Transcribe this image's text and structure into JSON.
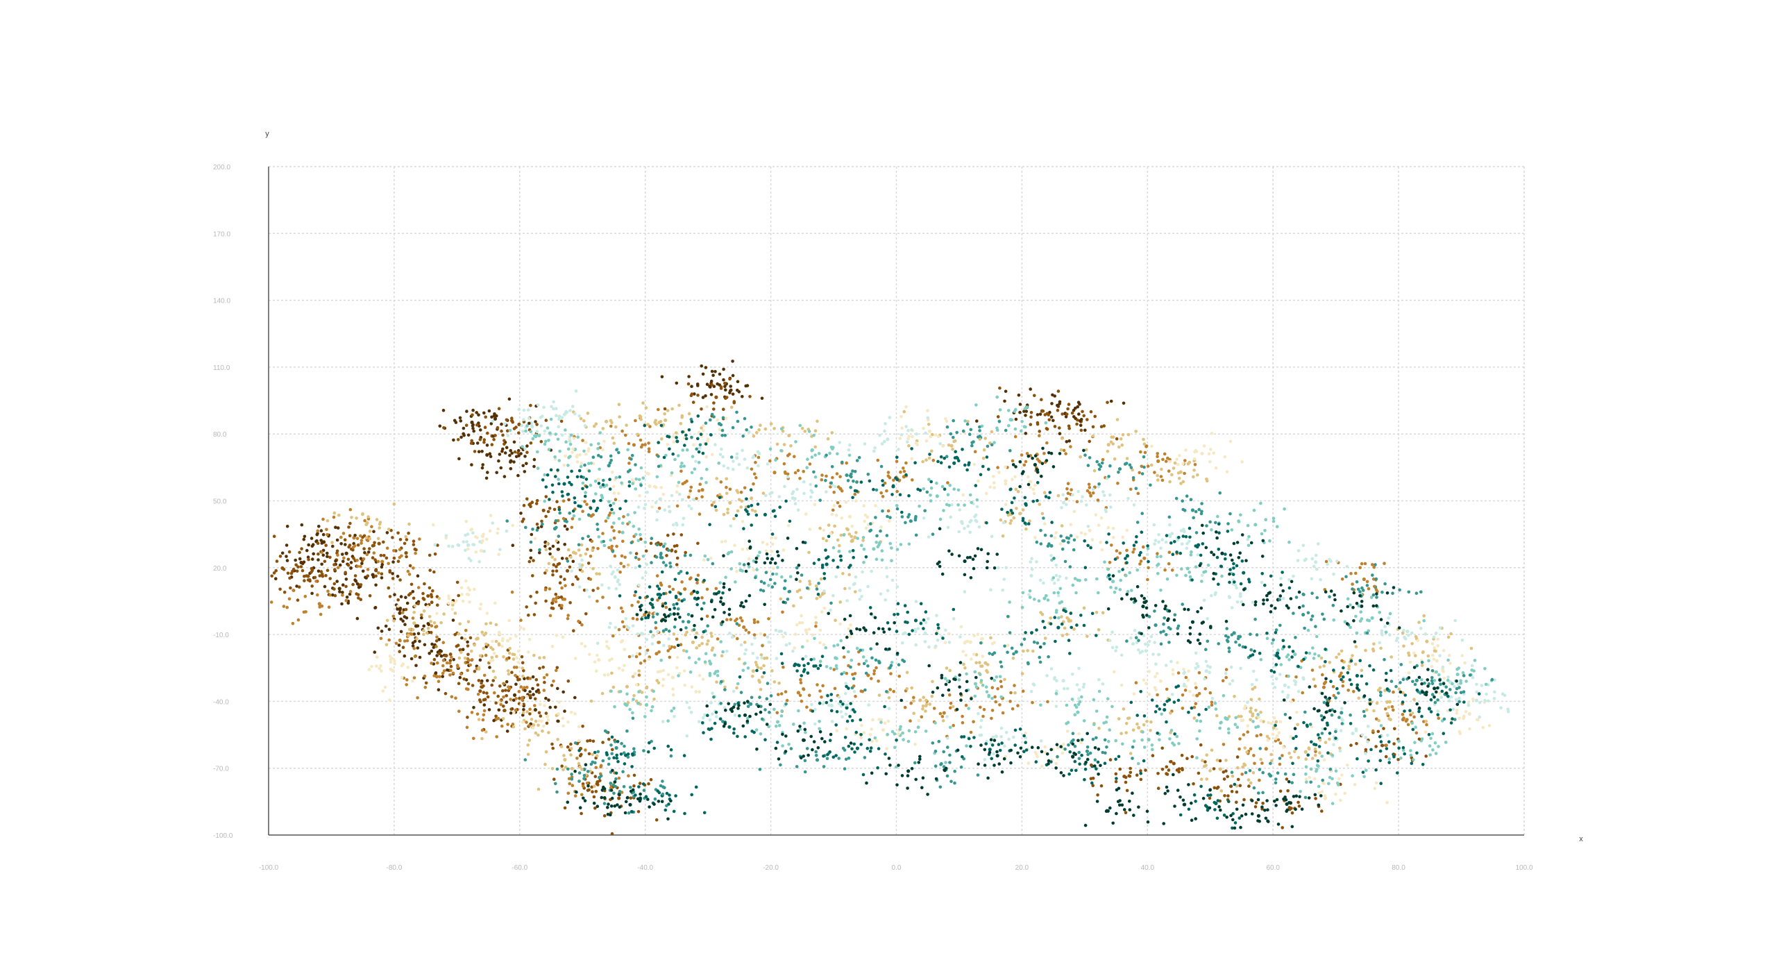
{
  "chart_data": {
    "type": "scatter",
    "title": "",
    "xlabel": "x",
    "ylabel": "y",
    "xlim": [
      -100.0,
      100.0
    ],
    "ylim": [
      -100.0,
      200.0
    ],
    "x_ticks": [
      -100.0,
      -80.0,
      -60.0,
      -40.0,
      -20.0,
      0.0,
      20.0,
      40.0,
      60.0,
      80.0,
      100.0
    ],
    "y_ticks": [
      -100.0,
      -70.0,
      -40.0,
      -10.0,
      20.0,
      50.0,
      80.0,
      110.0,
      140.0,
      170.0,
      200.0
    ],
    "x_tick_labels": [
      "-100.0",
      "-80.0",
      "-60.0",
      "-40.0",
      "-20.0",
      "0.0",
      "20.0",
      "40.0",
      "60.0",
      "80.0",
      "100.0"
    ],
    "y_tick_labels": [
      "-100.0",
      "-70.0",
      "-40.0",
      "-10.0",
      "20.0",
      "50.0",
      "80.0",
      "110.0",
      "140.0",
      "170.0",
      "200.0"
    ],
    "grid": true,
    "legend": "none",
    "palette": [
      "#543005",
      "#8c510a",
      "#bf812d",
      "#dfc27d",
      "#f6e8c3",
      "#c7eae5",
      "#80cdc1",
      "#35978f",
      "#01665e",
      "#003c30"
    ],
    "series": [
      {
        "color_index": 0,
        "points": [
          [
            -94.8,
            22.3
          ],
          [
            -91.2,
            31.5
          ],
          [
            -87.6,
            26.4
          ],
          [
            -83.4,
            16.8
          ],
          [
            -79.1,
            -0.4
          ],
          [
            -76.5,
            -6.2
          ],
          [
            -72.7,
            -17.3
          ],
          [
            -69.8,
            -25.1
          ],
          [
            -67.6,
            85.2
          ],
          [
            -63.9,
            86.8
          ],
          [
            -65.2,
            70.6
          ],
          [
            -61.4,
            67.9
          ],
          [
            -60.8,
            -37.2
          ],
          [
            -57.5,
            -43.8
          ],
          [
            -55.9,
            31.4
          ],
          [
            -29.7,
            101.4
          ],
          [
            -27.1,
            102.5
          ],
          [
            20.8,
            92.1
          ],
          [
            26.9,
            89.2
          ],
          [
            -88.7,
            10.6
          ]
        ]
      },
      {
        "color_index": 1,
        "points": [
          [
            -97.8,
            19.8
          ],
          [
            -93.7,
            16.2
          ],
          [
            -89.2,
            23.4
          ],
          [
            -85.6,
            12.2
          ],
          [
            -82.4,
            30.8
          ],
          [
            -78.1,
            26.6
          ],
          [
            -74.6,
            7.3
          ],
          [
            -71.7,
            -19.5
          ],
          [
            -66.3,
            -35.4
          ],
          [
            -62.4,
            -44.1
          ],
          [
            -58.7,
            -29.6
          ],
          [
            -54.8,
            4.1
          ],
          [
            -50.3,
            -61.2
          ],
          [
            -47.6,
            -76.2
          ],
          [
            -44.2,
            -83.5
          ],
          [
            -64.4,
            79.1
          ],
          [
            -60.1,
            84.3
          ],
          [
            -56.2,
            45.7
          ],
          [
            -52.4,
            18.6
          ],
          [
            -28.7,
            96.5
          ],
          [
            23.2,
            90.3
          ],
          [
            29.4,
            85.6
          ],
          [
            36.3,
            -73.7
          ],
          [
            44.2,
            -67.9
          ],
          [
            53.3,
            -78.1
          ],
          [
            62.8,
            -85.6
          ],
          [
            77.4,
            -59.8
          ],
          [
            -36.5,
            28.3
          ]
        ]
      },
      {
        "color_index": 2,
        "points": [
          [
            -91.9,
            3.8
          ],
          [
            -86.4,
            33.4
          ],
          [
            -81.9,
            22.7
          ],
          [
            -77.3,
            -7.8
          ],
          [
            -73.2,
            -28.9
          ],
          [
            -68.6,
            -22.6
          ],
          [
            -63.8,
            -48.1
          ],
          [
            -59.4,
            -34.7
          ],
          [
            -53.1,
            5.9
          ],
          [
            -48.6,
            43.2
          ],
          [
            -45.2,
            27.6
          ],
          [
            -41.8,
            75.1
          ],
          [
            -38.2,
            -18.6
          ],
          [
            -33.7,
            10.4
          ],
          [
            -30.9,
            54.9
          ],
          [
            -24.3,
            -6.7
          ],
          [
            -19.4,
            62.7
          ],
          [
            -15.6,
            -36.1
          ],
          [
            -8.9,
            55.4
          ],
          [
            -4.5,
            -28.3
          ],
          [
            1.2,
            60.8
          ],
          [
            7.6,
            -45.2
          ],
          [
            16.9,
            -38.6
          ],
          [
            22.4,
            70.8
          ],
          [
            31.6,
            56.1
          ],
          [
            39.5,
            24.2
          ],
          [
            41.7,
            67.8
          ],
          [
            47.9,
            -37.4
          ],
          [
            58.9,
            -61.3
          ],
          [
            68.1,
            -33.7
          ],
          [
            74.5,
            14.8
          ],
          [
            80.7,
            -48.2
          ],
          [
            -49.3,
            -73.4
          ],
          [
            -40.1,
            -1.1
          ]
        ]
      },
      {
        "color_index": 3,
        "points": [
          [
            -84.3,
            40.1
          ],
          [
            -76.8,
            -4.9
          ],
          [
            -66.7,
            -11.8
          ],
          [
            -62.1,
            -21.4
          ],
          [
            -57.8,
            -50.6
          ],
          [
            -51.4,
            26.8
          ],
          [
            -46.2,
            85.6
          ],
          [
            -42.9,
            -33.4
          ],
          [
            -36.8,
            86.2
          ],
          [
            -32.4,
            -13.5
          ],
          [
            -26.5,
            49.1
          ],
          [
            -22.8,
            -26.4
          ],
          [
            -17.1,
            79.3
          ],
          [
            -11.7,
            8.4
          ],
          [
            -6.6,
            33.6
          ],
          [
            3.8,
            -39.5
          ],
          [
            8.8,
            74.7
          ],
          [
            14.2,
            -22.8
          ],
          [
            19.7,
            44.3
          ],
          [
            27.5,
            -3.9
          ],
          [
            33.8,
            75.2
          ],
          [
            38.6,
            -51.8
          ],
          [
            45.3,
            62.9
          ],
          [
            51.6,
            -70.4
          ],
          [
            56.4,
            -44.6
          ],
          [
            65.2,
            -62.7
          ],
          [
            71.3,
            -22.3
          ],
          [
            78.6,
            -40.2
          ],
          [
            84.5,
            -13.1
          ],
          [
            -52.8,
            -66.2
          ]
        ]
      },
      {
        "color_index": 4,
        "points": [
          [
            -80.2,
            -26.2
          ],
          [
            -70.4,
            4.6
          ],
          [
            -65.9,
            34.1
          ],
          [
            -61.9,
            -12.8
          ],
          [
            -55.6,
            -46.8
          ],
          [
            -50.9,
            69.8
          ],
          [
            -47.4,
            -21.4
          ],
          [
            -39.3,
            56.6
          ],
          [
            -35.6,
            -29.3
          ],
          [
            -31.4,
            80.6
          ],
          [
            -23.7,
            28.4
          ],
          [
            -14.4,
            -8.1
          ],
          [
            -7.4,
            42.9
          ],
          [
            -2.1,
            -52.8
          ],
          [
            5.3,
            81.2
          ],
          [
            11.8,
            -13.4
          ],
          [
            17.4,
            58.9
          ],
          [
            24.9,
            -61.5
          ],
          [
            30.8,
            36.7
          ],
          [
            42.1,
            -30.9
          ],
          [
            48.7,
            71.2
          ],
          [
            60.3,
            -50.3
          ],
          [
            70.6,
            -77.1
          ],
          [
            86.1,
            -21.8
          ],
          [
            91.3,
            -45.6
          ]
        ]
      },
      {
        "color_index": 5,
        "points": [
          [
            -68.2,
            30.1
          ],
          [
            -58.2,
            84.9
          ],
          [
            -53.7,
            87.9
          ],
          [
            -44.8,
            15.8
          ],
          [
            -40.6,
            -9.6
          ],
          [
            -36.1,
            45.2
          ],
          [
            -30.5,
            -46.1
          ],
          [
            -25.4,
            69.3
          ],
          [
            -21.3,
            -14.7
          ],
          [
            -16.5,
            51.2
          ],
          [
            -10.3,
            -41.9
          ],
          [
            -5.8,
            9.8
          ],
          [
            -1.4,
            77.6
          ],
          [
            4.6,
            -9.5
          ],
          [
            10.4,
            40.6
          ],
          [
            15.9,
            -55.7
          ],
          [
            21.5,
            16.4
          ],
          [
            26.6,
            -30.7
          ],
          [
            32.2,
            49.9
          ],
          [
            37.7,
            -14.2
          ],
          [
            43.6,
            34.1
          ],
          [
            49.4,
            -26.4
          ],
          [
            54.8,
            7.2
          ],
          [
            61.9,
            -32.8
          ],
          [
            66.8,
            22.5
          ],
          [
            72.7,
            -54.4
          ],
          [
            81.4,
            -8.6
          ],
          [
            88.2,
            -31.4
          ],
          [
            92.4,
            -39.6
          ]
        ]
      },
      {
        "color_index": 6,
        "points": [
          [
            -56.9,
            79.3
          ],
          [
            -51.2,
            73.1
          ],
          [
            -47.1,
            56.2
          ],
          [
            -43.6,
            35.8
          ],
          [
            -39.8,
            -41.6
          ],
          [
            -34.3,
            65.4
          ],
          [
            -29.6,
            -23.1
          ],
          [
            -24.8,
            18.9
          ],
          [
            -18.9,
            -49.2
          ],
          [
            -13.4,
            72.8
          ],
          [
            -9.7,
            -20.5
          ],
          [
            -3.6,
            28.4
          ],
          [
            0.6,
            -55.2
          ],
          [
            6.5,
            52.1
          ],
          [
            12.6,
            -32.1
          ],
          [
            18.2,
            86.4
          ],
          [
            23.6,
            6.2
          ],
          [
            28.9,
            -44.9
          ],
          [
            34.5,
            13.8
          ],
          [
            40.2,
            -57.2
          ],
          [
            46.4,
            19.6
          ],
          [
            52.7,
            -47.9
          ],
          [
            57.2,
            39.3
          ],
          [
            63.5,
            -18.9
          ],
          [
            69.2,
            -71.1
          ],
          [
            75.8,
            -2.6
          ],
          [
            83.6,
            -57.6
          ],
          [
            89.4,
            -27.9
          ]
        ]
      },
      {
        "color_index": 7,
        "points": [
          [
            -54.4,
            37.5
          ],
          [
            -49.7,
            -70.5
          ],
          [
            -45.8,
            65.8
          ],
          [
            -41.9,
            -80.7
          ],
          [
            -37.5,
            24.6
          ],
          [
            -33.1,
            -4.3
          ],
          [
            -28.2,
            84.6
          ],
          [
            -23.2,
            -41.2
          ],
          [
            -17.8,
            10.7
          ],
          [
            -12.6,
            -66.3
          ],
          [
            -7.9,
            61.5
          ],
          [
            -2.7,
            -22.6
          ],
          [
            2.3,
            40.9
          ],
          [
            7.9,
            -70.6
          ],
          [
            13.4,
            78.4
          ],
          [
            19.1,
            -17.8
          ],
          [
            24.7,
            29.8
          ],
          [
            30.4,
            -62.4
          ],
          [
            35.6,
            64.3
          ],
          [
            41.3,
            -5.8
          ],
          [
            47.2,
            45.8
          ],
          [
            53.8,
            -9.3
          ],
          [
            59.6,
            -73.4
          ],
          [
            64.8,
            -1.1
          ],
          [
            70.9,
            -45.1
          ],
          [
            76.3,
            11.3
          ],
          [
            82.9,
            -30.6
          ],
          [
            87.4,
            -36.8
          ],
          [
            -44.6,
            -60.9
          ]
        ]
      },
      {
        "color_index": 8,
        "points": [
          [
            -52.9,
            57.6
          ],
          [
            -48.2,
            49.9
          ],
          [
            -43.1,
            -64.2
          ],
          [
            -38.9,
            5.7
          ],
          [
            -34.9,
            76.7
          ],
          [
            -31.7,
            8.9
          ],
          [
            -26.6,
            -51.5
          ],
          [
            -20.9,
            43.8
          ],
          [
            -16.1,
            -23.4
          ],
          [
            -11.1,
            21.5
          ],
          [
            -6.2,
            -61.1
          ],
          [
            -0.5,
            56.4
          ],
          [
            3.1,
            -3.7
          ],
          [
            9.2,
            66.9
          ],
          [
            14.9,
            -61.6
          ],
          [
            20.6,
            48.6
          ],
          [
            25.8,
            -6.9
          ],
          [
            31.2,
            -69.1
          ],
          [
            36.8,
            25.3
          ],
          [
            42.7,
            -43.8
          ],
          [
            48.1,
            30.2
          ],
          [
            50.9,
            -85.8
          ],
          [
            55.3,
            17.7
          ],
          [
            60.7,
            -18.4
          ],
          [
            67.4,
            -56.6
          ],
          [
            73.4,
            -28.5
          ],
          [
            79.2,
            -63.8
          ],
          [
            84.9,
            -43.3
          ],
          [
            -7.9,
            -42.9
          ],
          [
            -37.3,
            -82.3
          ]
        ]
      },
      {
        "color_index": 9,
        "points": [
          [
            -46.8,
            -79.8
          ],
          [
            -42.4,
            -86.4
          ],
          [
            -35.4,
            -0.8
          ],
          [
            -27.6,
            3.6
          ],
          [
            -19.8,
            23.9
          ],
          [
            -14.8,
            -57.4
          ],
          [
            -4.9,
            -8.1
          ],
          [
            1.9,
            -71.3
          ],
          [
            10.9,
            22.9
          ],
          [
            16.1,
            -64.4
          ],
          [
            22.1,
            66.2
          ],
          [
            28.1,
            -64.8
          ],
          [
            33.7,
            -89.2
          ],
          [
            39.3,
            2.6
          ],
          [
            45.9,
            -86.3
          ],
          [
            51.9,
            26.4
          ],
          [
            57.7,
            -91.4
          ],
          [
            62.2,
            -86.1
          ],
          [
            68.7,
            -40.6
          ],
          [
            74.1,
            2.7
          ],
          [
            85.7,
            -34.2
          ],
          [
            8.4,
            -31.1
          ],
          [
            -24.1,
            -46.2
          ],
          [
            60.8,
            5.6
          ],
          [
            47.2,
            -4.4
          ]
        ]
      }
    ]
  }
}
